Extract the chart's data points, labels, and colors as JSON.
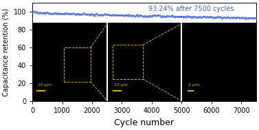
{
  "title": "",
  "xlabel": "Cycle number",
  "ylabel": "Capacitance retention (%)",
  "xlim": [
    0,
    7500
  ],
  "ylim": [
    0,
    110
  ],
  "yticks": [
    0,
    20,
    40,
    60,
    80,
    100
  ],
  "xticks": [
    0,
    1000,
    2000,
    3000,
    4000,
    5000,
    6000,
    7000
  ],
  "annotation_text": "93.24% after 7500 cycles",
  "annotation_color": "#4466dd",
  "line_color": "#4466dd",
  "scale_bar_color": "#ddaa00",
  "background_color": "#ffffff",
  "figsize": [
    3.77,
    1.89
  ],
  "dpi": 100,
  "xlabel_fontsize": 9,
  "ylabel_fontsize": 7,
  "tick_fontsize": 7,
  "annotation_fontsize": 7,
  "panels": [
    {
      "x_data_start": 0,
      "x_data_end": 2480,
      "label": "20 μm",
      "n_cells": 18,
      "seed": 10
    },
    {
      "x_data_start": 2520,
      "x_data_end": 4980,
      "label": "10 μm",
      "n_cells": 12,
      "seed": 42
    },
    {
      "x_data_start": 5020,
      "x_data_end": 7500,
      "label": "2 μm",
      "n_cells": 5,
      "seed": 77
    }
  ],
  "img_y_bottom_data": 0,
  "img_y_top_data": 87
}
